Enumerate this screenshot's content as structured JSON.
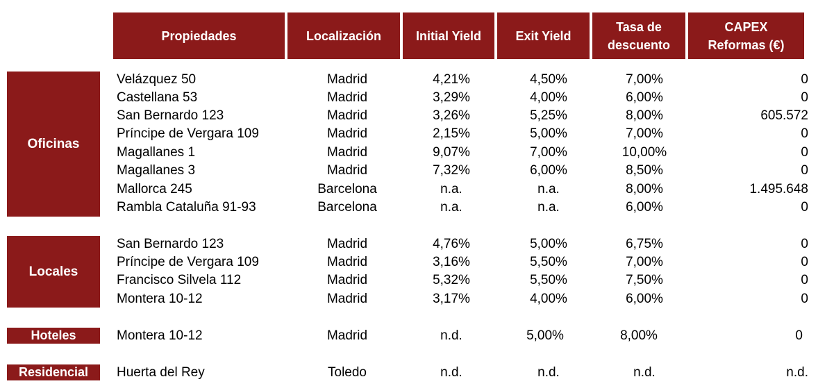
{
  "headers": {
    "propiedades": "Propiedades",
    "localizacion": "Localización",
    "initial_yield": "Initial Yield",
    "exit_yield": "Exit Yield",
    "tasa_1": "Tasa de",
    "tasa_2": "descuento",
    "capex_1": "CAPEX",
    "capex_2": "Reformas (€)"
  },
  "categories": {
    "oficinas": "Oficinas",
    "locales": "Locales",
    "hoteles": "Hoteles",
    "residencial": "Residencial"
  },
  "rows": [
    {
      "prop": "Velázquez 50",
      "loc": "Madrid",
      "iy": "4,21%",
      "ey": "4,50%",
      "td": "7,00%",
      "cx": "0"
    },
    {
      "prop": "Castellana 53",
      "loc": "Madrid",
      "iy": "3,29%",
      "ey": "4,00%",
      "td": "6,00%",
      "cx": "0"
    },
    {
      "prop": "San Bernardo 123",
      "loc": "Madrid",
      "iy": "3,26%",
      "ey": "5,25%",
      "td": "8,00%",
      "cx": "605.572"
    },
    {
      "prop": "Príncipe de Vergara 109",
      "loc": "Madrid",
      "iy": "2,15%",
      "ey": "5,00%",
      "td": "7,00%",
      "cx": "0"
    },
    {
      "prop": "Magallanes 1",
      "loc": "Madrid",
      "iy": "9,07%",
      "ey": "7,00%",
      "td": "10,00%",
      "cx": "0"
    },
    {
      "prop": "Magallanes 3",
      "loc": "Madrid",
      "iy": "7,32%",
      "ey": "6,00%",
      "td": "8,50%",
      "cx": "0"
    },
    {
      "prop": "Mallorca 245",
      "loc": "Barcelona",
      "iy": "n.a.",
      "ey": "n.a.",
      "td": "8,00%",
      "cx": "1.495.648"
    },
    {
      "prop": "Rambla Cataluña 91-93",
      "loc": "Barcelona",
      "iy": "n.a.",
      "ey": "n.a.",
      "td": "6,00%",
      "cx": "0"
    },
    {
      "prop": "San Bernardo 123",
      "loc": "Madrid",
      "iy": "4,76%",
      "ey": "5,00%",
      "td": "6,75%",
      "cx": "0"
    },
    {
      "prop": "Príncipe de Vergara 109",
      "loc": "Madrid",
      "iy": "3,16%",
      "ey": "5,50%",
      "td": "7,00%",
      "cx": "0"
    },
    {
      "prop": "Francisco Silvela 112",
      "loc": "Madrid",
      "iy": "5,32%",
      "ey": "5,50%",
      "td": "7,50%",
      "cx": "0"
    },
    {
      "prop": "Montera 10-12",
      "loc": "Madrid",
      "iy": "3,17%",
      "ey": "4,00%",
      "td": "6,00%",
      "cx": "0"
    },
    {
      "prop": "Montera 10-12",
      "loc": "Madrid",
      "iy": "n.d.",
      "ey": "5,00%",
      "td": "8,00%",
      "cx": "0"
    },
    {
      "prop": "Huerta del Rey",
      "loc": "Toledo",
      "iy": "n.d.",
      "ey": "n.d.",
      "td": "n.d.",
      "cx": "n.d."
    }
  ]
}
